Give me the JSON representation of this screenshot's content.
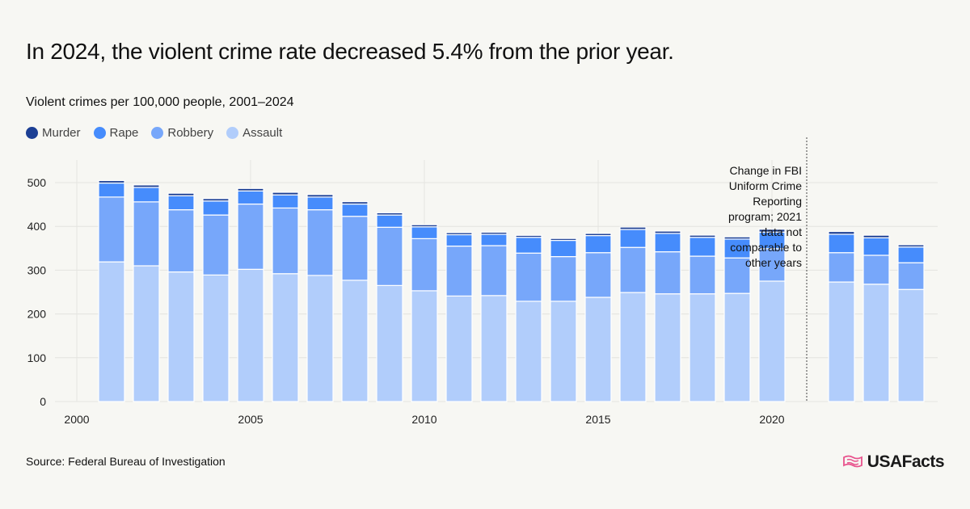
{
  "title": "In 2024, the violent crime rate decreased 5.4% from the prior year.",
  "subtitle": "Violent crimes per 100,000 people, 2001–2024",
  "source": "Source: Federal Bureau of Investigation",
  "logo": "USAFacts",
  "colors": {
    "Murder": "#1c3f94",
    "Rape": "#468cfc",
    "Robbery": "#77a7fa",
    "Assault": "#b1cdfb",
    "logo": "#e8528c"
  },
  "chart_data": {
    "type": "bar",
    "stacked": true,
    "title": "Violent crimes per 100,000 people, 2001–2024",
    "xlabel": "",
    "ylabel": "",
    "ylim": [
      0,
      550
    ],
    "yticks": [
      0,
      100,
      200,
      300,
      400,
      500
    ],
    "xticks": [
      2000,
      2005,
      2010,
      2015,
      2020
    ],
    "xlim": [
      2000,
      2024
    ],
    "grid": true,
    "legend": "top-left",
    "x": [
      2001,
      2002,
      2003,
      2004,
      2005,
      2006,
      2007,
      2008,
      2009,
      2010,
      2011,
      2012,
      2013,
      2014,
      2015,
      2016,
      2017,
      2018,
      2019,
      2020,
      2022,
      2023,
      2024
    ],
    "series": [
      {
        "name": "Assault",
        "values": [
          319,
          310,
          296,
          289,
          302,
          292,
          288,
          277,
          265,
          253,
          241,
          242,
          229,
          229,
          238,
          249,
          246,
          246,
          247,
          275,
          273,
          268,
          256
        ]
      },
      {
        "name": "Robbery",
        "values": [
          148,
          146,
          142,
          137,
          149,
          150,
          150,
          146,
          133,
          119,
          114,
          114,
          110,
          102,
          102,
          103,
          96,
          86,
          81,
          74,
          67,
          66,
          61
        ]
      },
      {
        "name": "Rape",
        "values": [
          32,
          33,
          32,
          32,
          30,
          30,
          29,
          28,
          28,
          27,
          26,
          26,
          36,
          37,
          39,
          41,
          42,
          43,
          43,
          38,
          42,
          40,
          36
        ]
      },
      {
        "name": "Murder",
        "values": [
          5.6,
          5.6,
          5.7,
          5.5,
          5.6,
          5.8,
          5.7,
          5.4,
          5.0,
          4.8,
          4.7,
          4.7,
          4.5,
          4.4,
          4.9,
          5.4,
          5.3,
          5.0,
          5.1,
          6.5,
          6.3,
          5.8,
          5.0
        ]
      }
    ],
    "annotation": {
      "x": 2021,
      "text": "Change in FBI Uniform Crime Reporting program; 2021 data not comparable to other years"
    }
  }
}
